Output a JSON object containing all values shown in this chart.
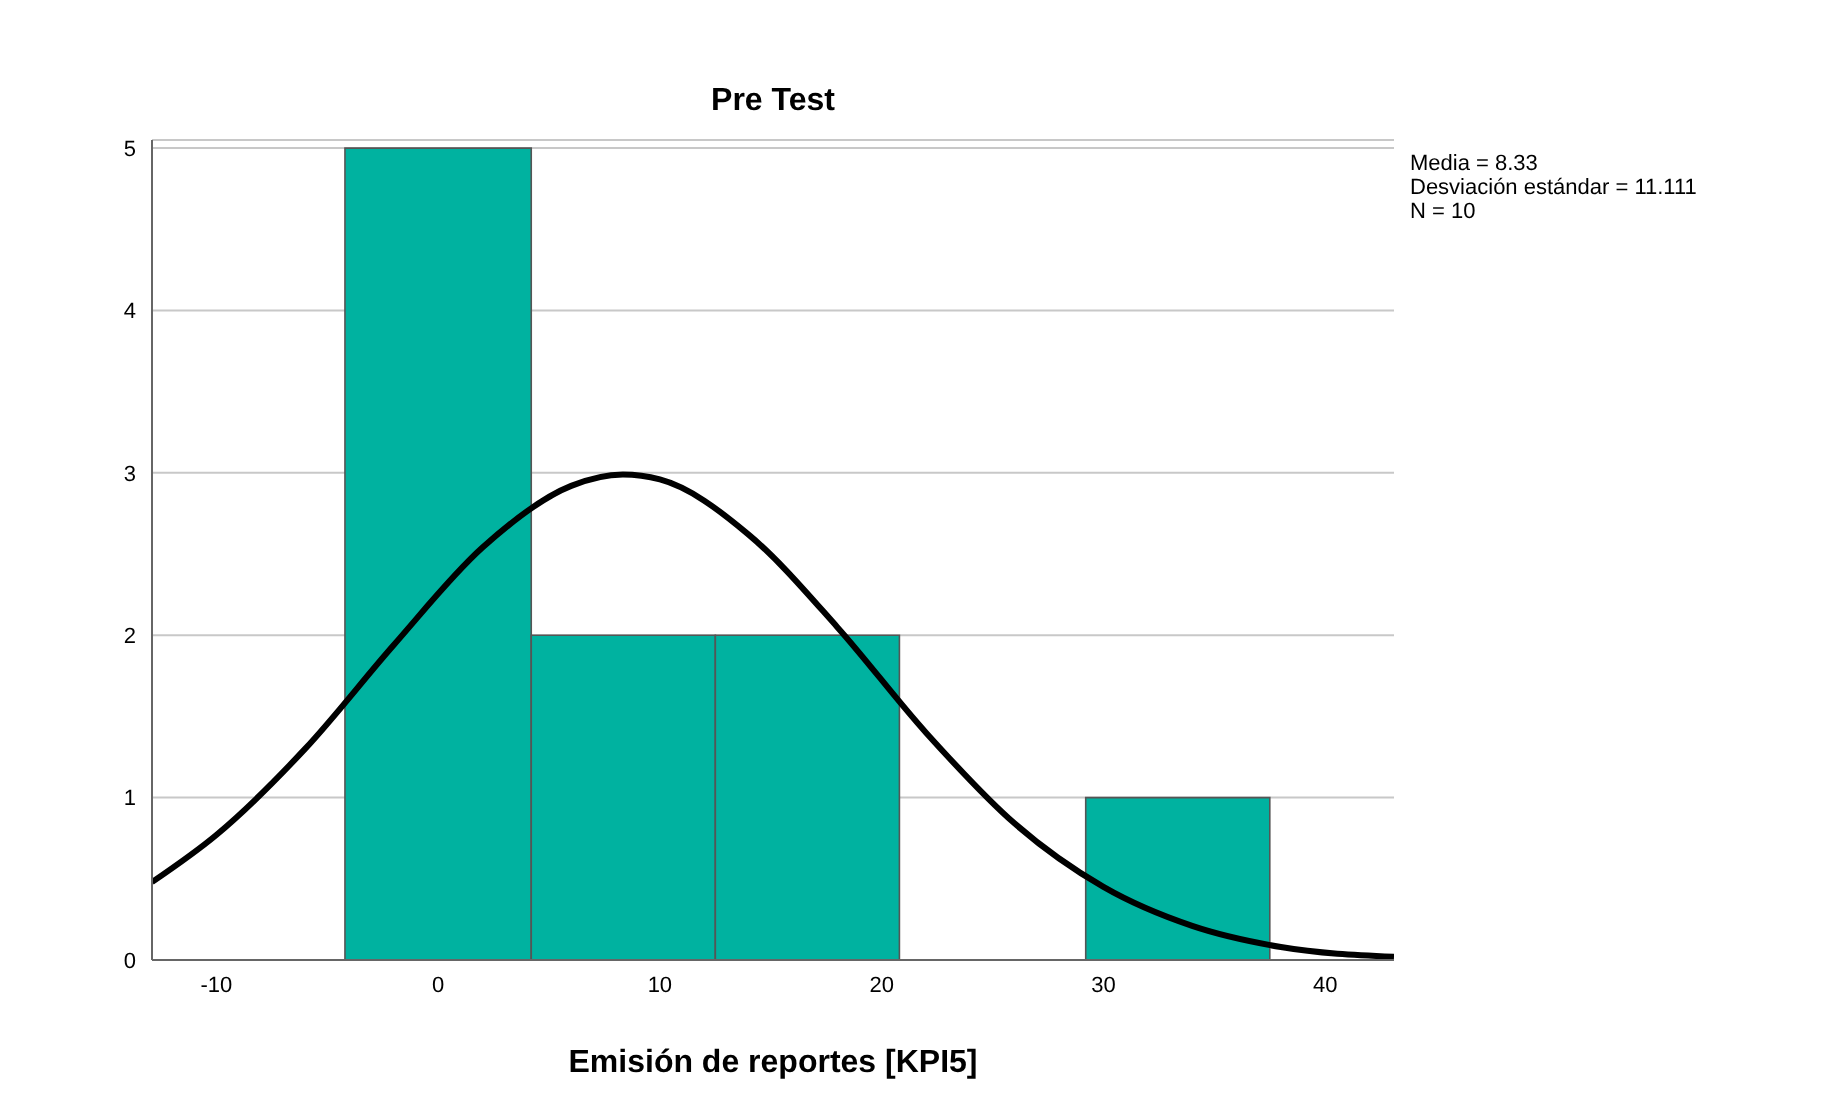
{
  "chart_data": {
    "type": "histogram",
    "title": "Pre Test",
    "xlabel": "Emisión de reportes [KPI5]",
    "annotations": [
      "Media = 8.33",
      "Desviación estándar = 11.111",
      "N = 10"
    ],
    "bins": [
      -4.2,
      4.2,
      12.5,
      20.8,
      29.2,
      37.5
    ],
    "values": [
      5,
      2,
      2,
      0,
      1
    ],
    "color": "#00b2a0",
    "series": [
      {
        "type": "line",
        "color": "#000000",
        "x": [
          -12.9,
          -10,
          -6,
          -2,
          2,
          6,
          8.33,
          10,
          14,
          18,
          22,
          26,
          30,
          34,
          38,
          43.1
        ],
        "values": [
          0.48,
          0.77,
          1.3,
          1.94,
          2.54,
          2.92,
          2.99,
          2.96,
          2.62,
          2.05,
          1.4,
          0.84,
          0.45,
          0.21,
          0.08,
          0.02
        ]
      }
    ],
    "xlim": [
      -12.9,
      43.1
    ],
    "xticks": [
      -10,
      0,
      10,
      20,
      30,
      40
    ],
    "ylim": [
      0,
      5.05
    ],
    "yticks": [
      0,
      1,
      2,
      3,
      4,
      5
    ],
    "grid": "y",
    "legend": false
  }
}
